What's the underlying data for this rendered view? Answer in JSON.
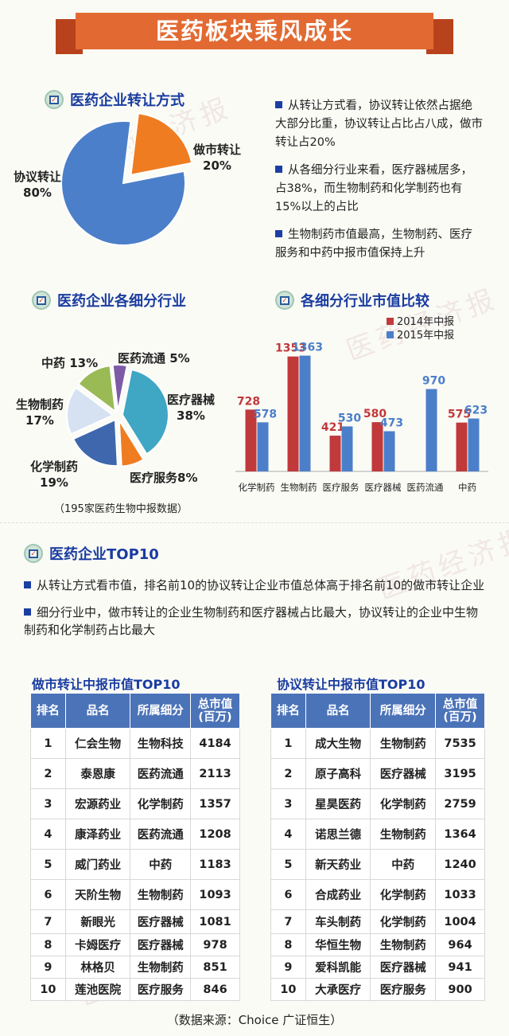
{
  "title": "医药板块乘风成长",
  "section1": {
    "heading": "医药企业转让方式",
    "labels": [
      {
        "name": "协议转让",
        "pct": "80%"
      },
      {
        "name": "做市转让",
        "pct": "20%"
      }
    ],
    "bullets": [
      "从转让方式看，协议转让依然占据绝大部分比重，协议转让占比占八成，做市转让占20%",
      "从各细分行业来看，医疗器械居多，占38%，而生物制药和化学制药也有15%以上的占比",
      "生物制药市值最高，生物制药、医疗服务和中药中报市值保持上升"
    ]
  },
  "section2": {
    "heading": "医药企业各细分行业",
    "labels": [
      {
        "name": "中药",
        "pct": "13%"
      },
      {
        "name": "医药流通",
        "pct": "5%"
      },
      {
        "name": "医疗器械",
        "pct": "38%"
      },
      {
        "name": "医疗服务",
        "pct": "8%"
      },
      {
        "name": "化学制药",
        "pct": "19%"
      },
      {
        "name": "生物制药",
        "pct": "17%"
      }
    ],
    "note": "（195家医药生物中报数据）"
  },
  "section3": {
    "heading": "各细分行业市值比较",
    "legend": [
      "2014年中报",
      "2015年中报"
    ]
  },
  "section4": {
    "heading": "医药企业TOP10",
    "bullets": [
      "从转让方式看市值，排名前10的协议转让企业市值总体高于排名前10的做市转让企业",
      "细分行业中，做市转让的企业生物制药和医疗器械占比最大，协议转让的企业中生物制药和化学制药占比最大"
    ]
  },
  "tables": {
    "headers": [
      "排名",
      "品名",
      "所属细分",
      "总市值(百万)"
    ],
    "left": {
      "title": "做市转让中报市值TOP10",
      "rows": [
        [
          "1",
          "仁会生物",
          "生物科技",
          "4184"
        ],
        [
          "2",
          "泰恩康",
          "医药流通",
          "2113"
        ],
        [
          "3",
          "宏源药业",
          "化学制药",
          "1357"
        ],
        [
          "4",
          "康泽药业",
          "医药流通",
          "1208"
        ],
        [
          "5",
          "威门药业",
          "中药",
          "1183"
        ],
        [
          "6",
          "天阶生物",
          "生物制药",
          "1093"
        ],
        [
          "7",
          "新眼光",
          "医疗器械",
          "1081"
        ],
        [
          "8",
          "卡姆医疗",
          "医疗器械",
          "978"
        ],
        [
          "9",
          "林格贝",
          "生物制药",
          "851"
        ],
        [
          "10",
          "莲池医院",
          "医疗服务",
          "846"
        ]
      ]
    },
    "right": {
      "title": "协议转让中报市值TOP10",
      "rows": [
        [
          "1",
          "成大生物",
          "生物制药",
          "7535"
        ],
        [
          "2",
          "原子高科",
          "医疗器械",
          "3195"
        ],
        [
          "3",
          "星昊医药",
          "化学制药",
          "2759"
        ],
        [
          "4",
          "诺思兰德",
          "生物制药",
          "1364"
        ],
        [
          "5",
          "新天药业",
          "中药",
          "1240"
        ],
        [
          "6",
          "合成药业",
          "化学制药",
          "1033"
        ],
        [
          "7",
          "车头制药",
          "化学制药",
          "1004"
        ],
        [
          "8",
          "华恒生物",
          "生物制药",
          "964"
        ],
        [
          "9",
          "爱科凯能",
          "医疗器械",
          "941"
        ],
        [
          "10",
          "大承医疗",
          "医疗服务",
          "900"
        ]
      ]
    }
  },
  "source": "（数据来源：Choice 广证恒生）",
  "watermark": "医药经济报",
  "colors": {
    "blue": "#4b7fc9",
    "red": "#c0393b",
    "orange": "#ef7c20",
    "pie_cyan": "#3fa6c4",
    "pie_navy": "#3e67ad",
    "pie_lightblue": "#d6e2f2",
    "pie_green": "#9aba56",
    "pie_purple": "#7e5aa6"
  },
  "chart_data": [
    {
      "type": "pie",
      "categories": [
        "协议转让",
        "做市转让"
      ],
      "values": [
        80,
        20
      ],
      "colors": [
        "#4b7fc9",
        "#ef7c20"
      ],
      "exploded": "做市转让"
    },
    {
      "type": "pie",
      "categories": [
        "医疗器械",
        "医疗服务",
        "化学制药",
        "生物制药",
        "中药",
        "医药流通"
      ],
      "values": [
        38,
        8,
        19,
        17,
        13,
        5
      ],
      "colors": [
        "#3fa6c4",
        "#ef7c20",
        "#3e67ad",
        "#d6e2f2",
        "#9aba56",
        "#7e5aa6"
      ]
    },
    {
      "type": "bar",
      "categories": [
        "化学制药",
        "生物制药",
        "医疗服务",
        "医疗器械",
        "医药流通",
        "中药"
      ],
      "series": [
        {
          "name": "2014年中报",
          "values": [
            728,
            1353,
            421,
            580,
            null,
            575
          ],
          "color": "#c0393b"
        },
        {
          "name": "2015年中报",
          "values": [
            578,
            1363,
            530,
            473,
            970,
            623
          ],
          "color": "#4b7fc9"
        }
      ],
      "ylim": [
        0,
        1500
      ],
      "legend": "top-right",
      "grid": false
    }
  ]
}
